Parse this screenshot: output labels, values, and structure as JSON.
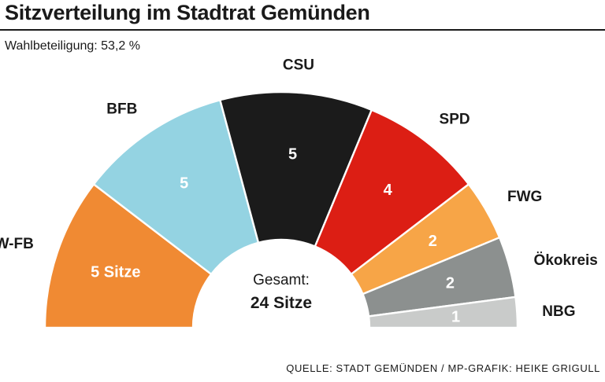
{
  "header": {
    "title": "Sitzverteilung im Stadtrat Gemünden",
    "turnout": "Wahlbeteiligung: 53,2 %"
  },
  "footer": {
    "source": "QUELLE: STADT GEMÜNDEN / MP-GRAFIK: HEIKE GRIGULL"
  },
  "chart_data": {
    "type": "pie",
    "variant": "semicircle-parliament",
    "categories": [
      "FW-FB",
      "BFB",
      "CSU",
      "SPD",
      "FWG",
      "Ökokreis",
      "NBG"
    ],
    "values": [
      5,
      5,
      5,
      4,
      2,
      2,
      1
    ],
    "value_labels": [
      "5 Sitze",
      "5",
      "5",
      "4",
      "2",
      "2",
      "1"
    ],
    "colors": [
      "#f08a33",
      "#94d3e2",
      "#1b1b1b",
      "#dc1e14",
      "#f7a547",
      "#8c908f",
      "#c9cbca"
    ],
    "label_colors": [
      "#ffffff",
      "#ffffff",
      "#ffffff",
      "#ffffff",
      "#ffffff",
      "#ffffff",
      "#ffffff"
    ],
    "total_caption": "Gesamt:",
    "total_value": "24 Sitze"
  }
}
